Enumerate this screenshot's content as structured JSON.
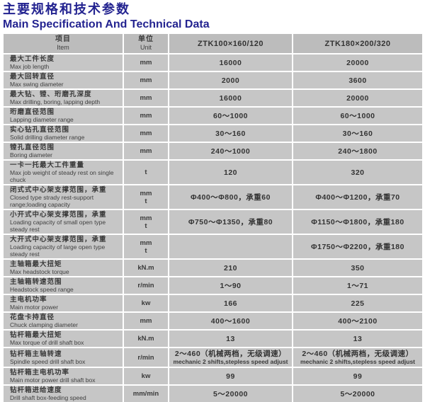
{
  "page": {
    "title_zh": "主要规格和技术参数",
    "title_en": "Main  Specification And Technical Data"
  },
  "colors": {
    "title_navy": "#232390",
    "header_cell_bg": "#bcbcbc",
    "cell_bg": "#c6c6c6",
    "table_text": "#3a3a3a",
    "separator": "#ffffff"
  },
  "table": {
    "header": {
      "item_zh": "项目",
      "item_en": "Item",
      "unit_zh": "单位",
      "unit_en": "Unit",
      "model1": "ZTK100×160/120",
      "model2": "ZTK180×200/320"
    },
    "rows": [
      {
        "zh": "最大工件长度",
        "en": "Max job length",
        "unit": "mm",
        "v1": "16000",
        "v2": "20000"
      },
      {
        "zh": "最大回转直径",
        "en": "Max swing diameter",
        "unit": "mm",
        "v1": "2000",
        "v2": "3600"
      },
      {
        "zh": "最大钻、镗、珩磨孔深度",
        "en": "Max drilling, boring, lapping depth",
        "unit": "mm",
        "v1": "16000",
        "v2": "20000"
      },
      {
        "zh": "珩磨直径范围",
        "en": "Lapping diameter range",
        "unit": "mm",
        "v1": "60～1000",
        "v2": "60～1000"
      },
      {
        "zh": "实心钻孔直径范围",
        "en": "Solid drilling diameter range",
        "unit": "mm",
        "v1": "30～160",
        "v2": "30～160"
      },
      {
        "zh": "镗孔直径范围",
        "en": "Boring diameter",
        "unit": "mm",
        "v1": "240～1000",
        "v2": "240～1800"
      },
      {
        "zh": "一卡一托最大工件重量",
        "en": "Max job weight of steady rest on single chuck",
        "unit": "t",
        "v1": "120",
        "v2": "320"
      },
      {
        "zh": "闭式式中心架支撑范围，承重",
        "en": "Closed type strady rest-support range;loading capacity",
        "unit": "mm",
        "unit2": "t",
        "v1": "Φ400～Φ800，承重60",
        "v2": "Φ400～Φ1200，承重70"
      },
      {
        "zh": "小开式中心架支撑范围，承重",
        "en": "Loading capacity of small open type steady rest",
        "unit": "mm",
        "unit2": "t",
        "v1": "Φ750～Φ1350，承重80",
        "v2": "Φ1150～Φ1800，承重180"
      },
      {
        "zh": "大开式中心架支撑范围，承重",
        "en": "Loading capacity of large open type steady rest",
        "unit": "mm",
        "unit2": "t",
        "v1": "",
        "v2": "Φ1750～Φ2200，承重180"
      },
      {
        "zh": "主轴箱最大扭矩",
        "en": "Max headstock torque",
        "unit": "kN.m",
        "v1": "210",
        "v2": "350"
      },
      {
        "zh": "主轴箱转速范围",
        "en": "Headstock speed range",
        "unit": "r/min",
        "v1": "1～90",
        "v2": "1～71"
      },
      {
        "zh": "主电机功率",
        "en": "Main motor power",
        "unit": "kw",
        "v1": "166",
        "v2": "225"
      },
      {
        "zh": "花盘卡持直径",
        "en": "Chuck clamping diameter",
        "unit": "mm",
        "v1": "400～1600",
        "v2": "400～2100"
      },
      {
        "zh": "钻杆箱最大扭矩",
        "en": "Max torque of drill shaft box",
        "unit": "kN.m",
        "v1": "13",
        "v2": "13"
      },
      {
        "zh": "钻杆箱主轴转速",
        "en": "Spindle speed drill shaft box",
        "unit": "r/min",
        "v1": "2～460（机械两档，无级调速）",
        "v1b": "mechanic 2 shifts,stepless speed adjust",
        "v2": "2～460（机械两档，无级调速）",
        "v2b": "mechanic 2 shifts,stepless speed adjust"
      },
      {
        "zh": "钻杆箱主电机功率",
        "en": "Main motor power drill shaft box",
        "unit": "kw",
        "v1": "99",
        "v2": "99"
      },
      {
        "zh": "钻杆箱进给速度",
        "en": "Drill shaft box-feeding speed",
        "unit": "mm/min",
        "v1": "5～20000",
        "v2": "5～20000"
      }
    ]
  }
}
